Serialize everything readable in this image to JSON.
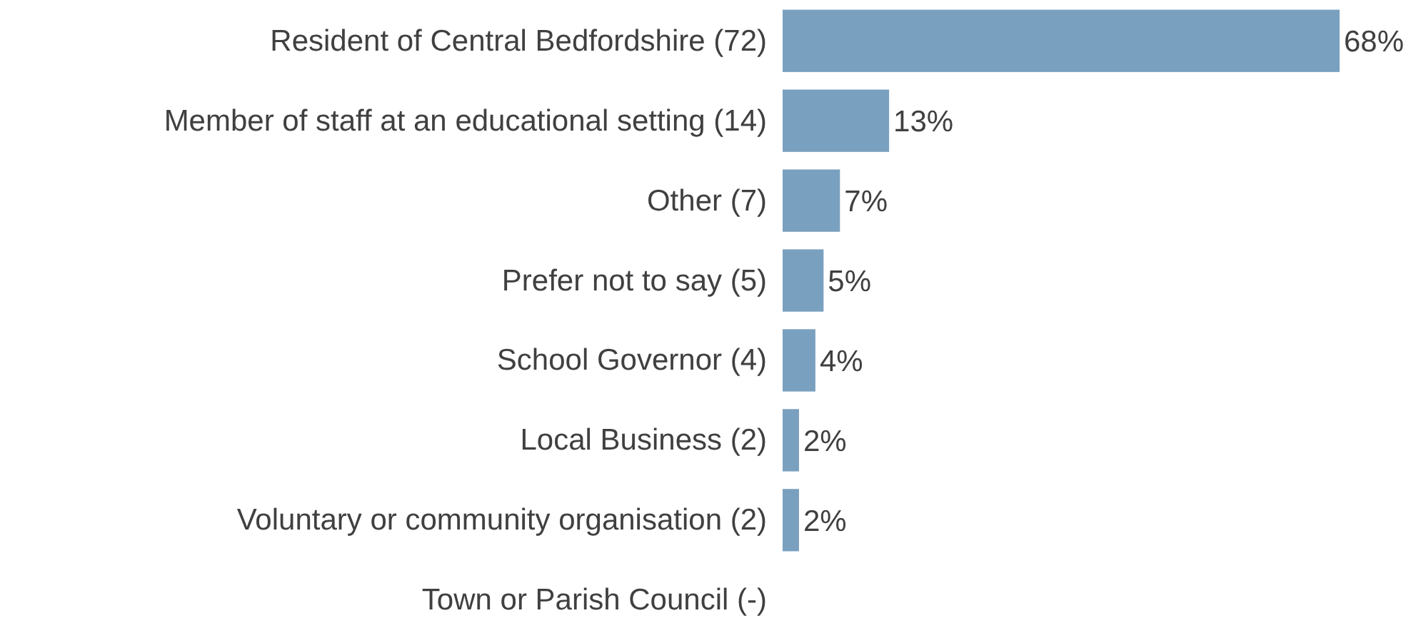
{
  "chart_data": {
    "type": "bar",
    "orientation": "horizontal",
    "categories": [
      "Resident of Central Bedfordshire (72)",
      "Member of staff at an educational setting (14)",
      "Other (7)",
      "Prefer not to say (5)",
      "School Governor (4)",
      "Local Business (2)",
      "Voluntary or community organisation (2)",
      "Town or Parish Council (-)"
    ],
    "values": [
      68,
      13,
      7,
      5,
      4,
      2,
      2,
      null
    ],
    "value_labels": [
      "68%",
      "13%",
      "7%",
      "5%",
      "4%",
      "2%",
      "2%",
      null
    ],
    "color": "#7aa0bf",
    "xlim": [
      0,
      68
    ],
    "tick_labels": "y"
  }
}
